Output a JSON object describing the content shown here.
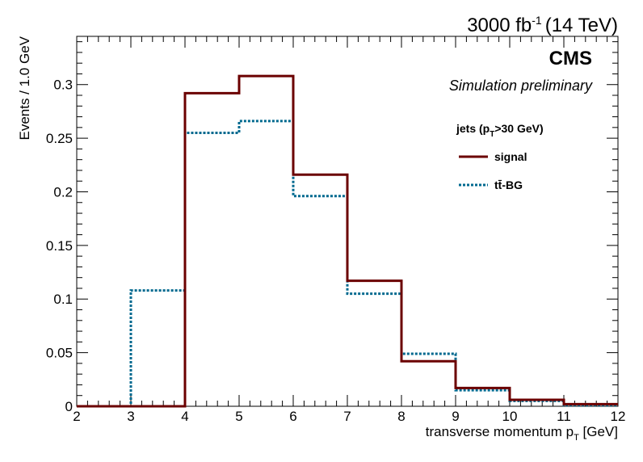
{
  "header": {
    "lumi": "3000 fb",
    "lumi_exp": "-1",
    "energy": "(14 TeV)",
    "experiment": "CMS",
    "status": "Simulation preliminary"
  },
  "legend": {
    "header_pre": "jets (p",
    "header_sub": "T",
    "header_post": ">30 GeV)",
    "entries": [
      "signal",
      "tt̄-BG"
    ]
  },
  "chart_data": {
    "type": "histogram",
    "xlabel_pre": "transverse momentum p",
    "xlabel_sub": "T",
    "xlabel_post": " [GeV]",
    "ylabel": "Events / 1.0 GeV",
    "xlim": [
      2,
      12
    ],
    "ylim": [
      0,
      0.345
    ],
    "xticks": [
      2,
      3,
      4,
      5,
      6,
      7,
      8,
      9,
      10,
      11,
      12
    ],
    "yticks": [
      0,
      0.05,
      0.1,
      0.15,
      0.2,
      0.25,
      0.3
    ],
    "ytick_labels": [
      "0",
      "0.05",
      "0.1",
      "0.15",
      "0.2",
      "0.25",
      "0.3"
    ],
    "bin_edges": [
      2,
      3,
      4,
      5,
      6,
      7,
      8,
      9,
      10,
      11,
      12
    ],
    "series": [
      {
        "name": "signal",
        "color": "#6b0000",
        "style": "solid",
        "values": [
          0,
          0,
          0.292,
          0.308,
          0.216,
          0.117,
          0.042,
          0.017,
          0.006,
          0.002
        ]
      },
      {
        "name": "tt̄-BG",
        "color": "#00698f",
        "style": "dotted",
        "values": [
          0,
          0.108,
          0.255,
          0.266,
          0.196,
          0.105,
          0.049,
          0.015,
          0.005,
          0.001
        ]
      }
    ],
    "grid": false,
    "legend_position": "top-right"
  }
}
